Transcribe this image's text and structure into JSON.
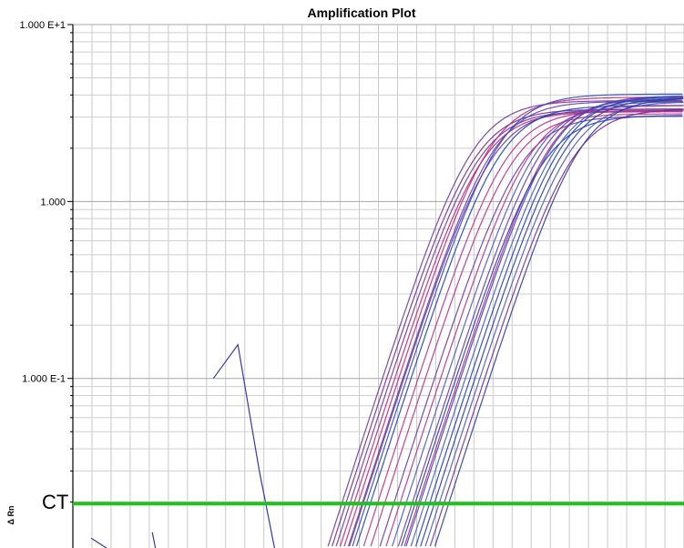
{
  "chart_data": {
    "type": "line",
    "title": "Amplification Plot",
    "xlabel": "",
    "ylabel": "Δ Rn",
    "yscale": "log",
    "ylim": [
      0.011,
      10
    ],
    "xlim": [
      0,
      40
    ],
    "y_tick_labels": [
      "1.000 E+1",
      "1.000",
      "1.000 E-1"
    ],
    "y_tick_values": [
      10,
      1,
      0.1
    ],
    "grid": true,
    "threshold": {
      "label": "CT",
      "value": 0.0196,
      "color": "#22c21e"
    },
    "sample_colors": [
      "#7a2a8f",
      "#c0267a",
      "#3048c0",
      "#6a3aa8",
      "#1e40b8",
      "#b8308a",
      "#4a5ab8",
      "#2a3aa0"
    ],
    "groups": [
      {
        "count": 7,
        "ct_range": [
          17.6,
          19.2
        ],
        "color_range": [
          0,
          3
        ]
      },
      {
        "count": 4,
        "ct_range": [
          19.0,
          20.4
        ],
        "color_range": [
          1,
          6
        ]
      },
      {
        "count": 5,
        "ct_range": [
          21.0,
          22.6
        ],
        "color_range": [
          1,
          8
        ]
      },
      {
        "count": 8,
        "ct_range": [
          22.4,
          24.6
        ],
        "color_range": [
          2,
          8
        ]
      }
    ],
    "plateau_range": [
      3.0,
      4.1
    ],
    "noise_trace": {
      "x": [
        9.2,
        10.8,
        12.2,
        13.2
      ],
      "y": [
        0.1,
        0.155,
        0.03,
        0.011
      ],
      "color": "#3838a8"
    }
  }
}
